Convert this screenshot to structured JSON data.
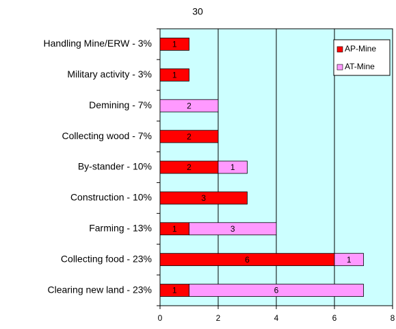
{
  "chart_data": {
    "type": "hbar_stacked",
    "title": "30",
    "categories": [
      "Handling Mine/ERW - 3%",
      "Military activity - 3%",
      "Demining - 7%",
      "Collecting wood - 7%",
      "By-stander - 10%",
      "Construction - 10%",
      "Farming - 13%",
      "Collecting food - 23%",
      "Clearing new land - 23%"
    ],
    "series": [
      {
        "name": "AP-Mine",
        "color": "#ff0000",
        "values": [
          1,
          1,
          null,
          2,
          2,
          3,
          1,
          6,
          1
        ]
      },
      {
        "name": "AT-Mine",
        "color": "#ff99ff",
        "values": [
          null,
          null,
          2,
          null,
          1,
          null,
          3,
          1,
          6
        ]
      }
    ],
    "xlim": [
      0,
      8
    ],
    "xticks": [
      0,
      2,
      4,
      6,
      8
    ],
    "grid": true,
    "legend": "top-right",
    "background": "#ccffff"
  }
}
